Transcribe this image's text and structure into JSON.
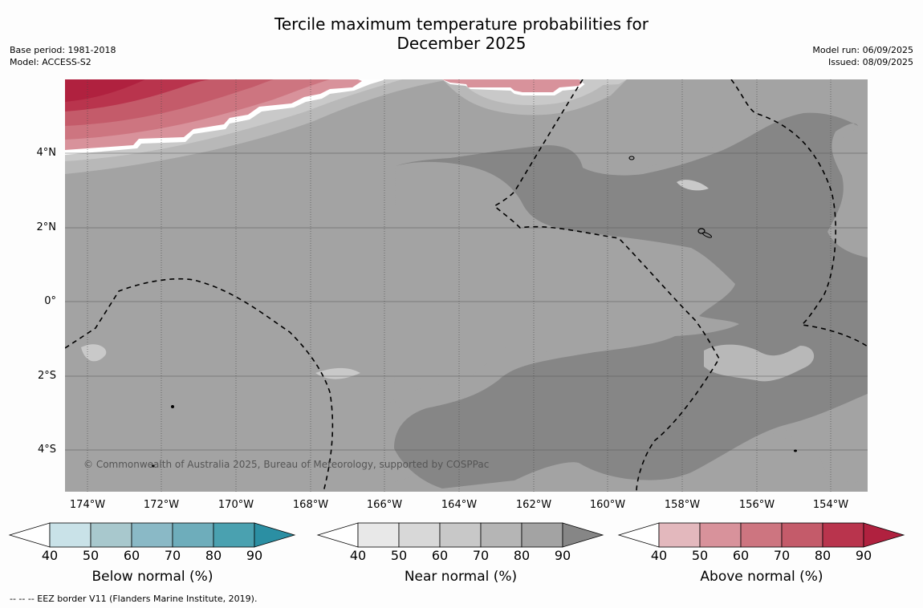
{
  "title_line1": "Tercile maximum temperature probabilities for",
  "title_line2": "December 2025",
  "base_period": "Base period: 1981-2018",
  "model": "Model: ACCESS-S2",
  "model_run": "Model run: 06/09/2025",
  "issued": "Issued: 08/09/2025",
  "copyright": "© Commonwealth of Australia 2025, Bureau of Meteorology, supported by COSPPac",
  "eez_note": "--  --  -- EEZ border V11 (Flanders Marine Institute, 2019).",
  "lat_labels": [
    "4°N",
    "2°N",
    "0°",
    "2°S",
    "4°S"
  ],
  "lon_labels": [
    "174°W",
    "172°W",
    "170°W",
    "168°W",
    "166°W",
    "164°W",
    "162°W",
    "160°W",
    "158°W",
    "156°W",
    "154°W"
  ],
  "legends": [
    {
      "label": "Below normal (%)",
      "ticks": [
        "40",
        "50",
        "60",
        "70",
        "80",
        "90"
      ],
      "colors": [
        "#ffffff",
        "#c9e2e8",
        "#a8c8cd",
        "#8ab9c6",
        "#6eadbb",
        "#4aa1b0",
        "#2b8fa3"
      ]
    },
    {
      "label": "Near normal (%)",
      "ticks": [
        "40",
        "50",
        "60",
        "70",
        "80",
        "90"
      ],
      "colors": [
        "#ffffff",
        "#e8e8e8",
        "#d8d8d8",
        "#c8c8c8",
        "#b5b5b5",
        "#a3a3a3",
        "#868686"
      ]
    },
    {
      "label": "Above normal (%)",
      "ticks": [
        "40",
        "50",
        "60",
        "70",
        "80",
        "90"
      ],
      "colors": [
        "#ffffff",
        "#e3b8bd",
        "#d8929b",
        "#cd7580",
        "#c45b6a",
        "#b9344d",
        "#b0213f"
      ]
    }
  ]
}
